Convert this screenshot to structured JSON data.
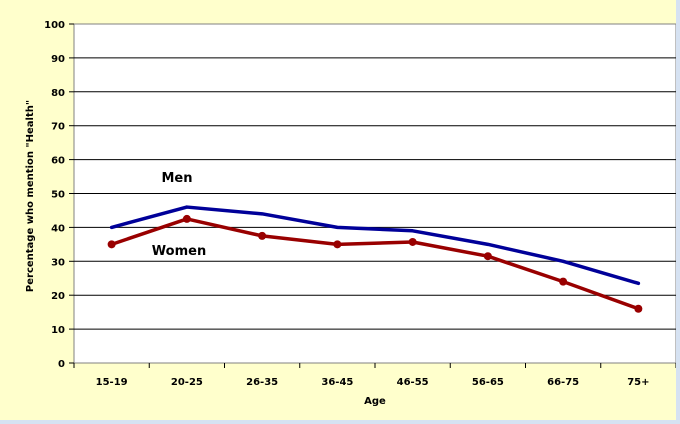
{
  "chart_data": {
    "type": "line",
    "title": "",
    "xlabel": "Age",
    "ylabel": "Percentage who mention \"Health\"",
    "categories": [
      "15-19",
      "20-25",
      "26-35",
      "36-45",
      "46-55",
      "56-65",
      "66-75",
      "75+"
    ],
    "ylim": [
      0,
      100
    ],
    "yticks": [
      "0",
      "10",
      "20",
      "30",
      "40",
      "50",
      "60",
      "70",
      "80",
      "90",
      "100"
    ],
    "grid": true,
    "legend": "inline labels",
    "series": [
      {
        "name": "Men",
        "color": "#000099",
        "markers": false,
        "values": [
          40,
          46,
          44,
          40,
          39,
          35,
          30,
          23.5
        ]
      },
      {
        "name": "Women",
        "color": "#990000",
        "markers": true,
        "values": [
          35,
          42.5,
          37.5,
          35,
          35.7,
          31.5,
          24,
          16
        ]
      }
    ]
  }
}
